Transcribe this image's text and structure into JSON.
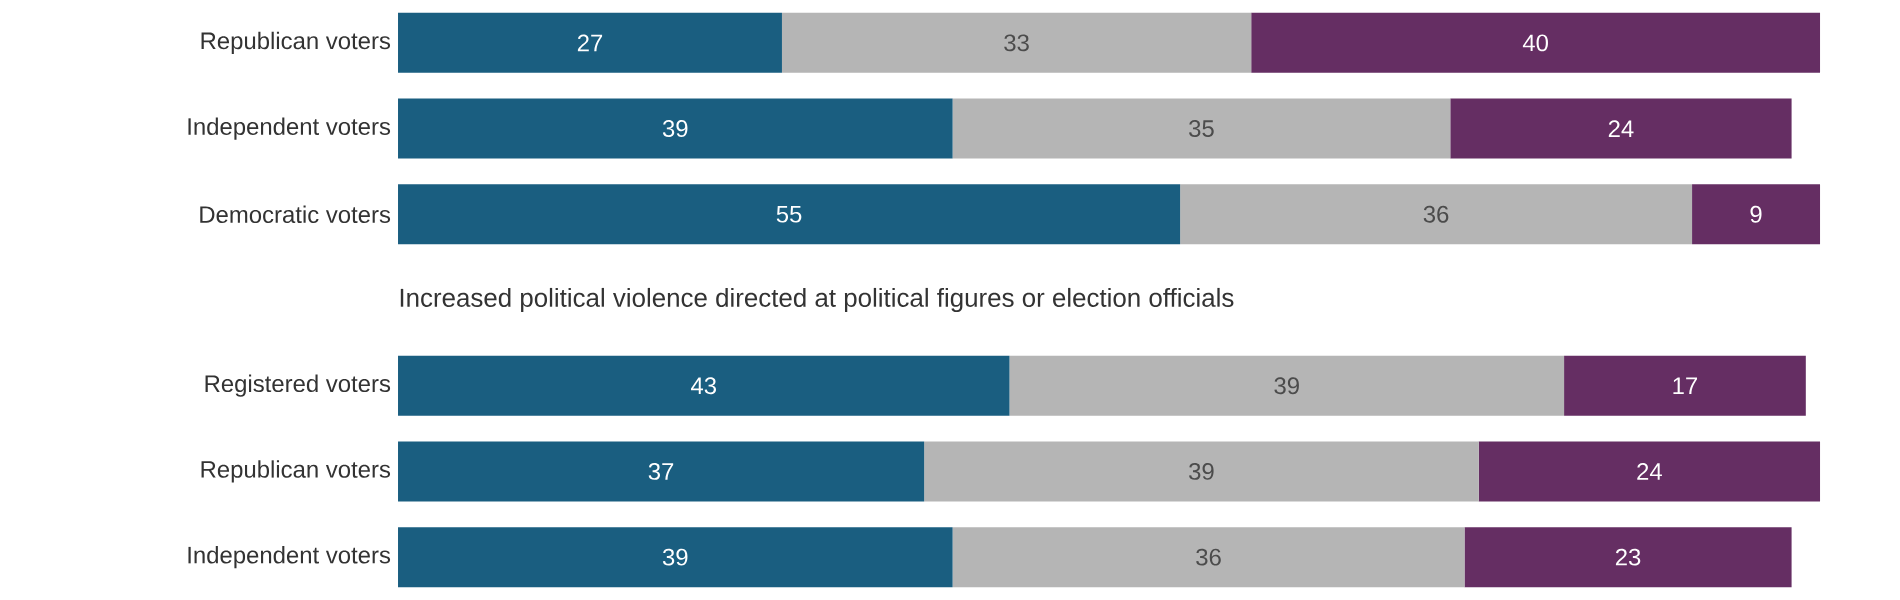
{
  "chart_data": {
    "type": "bar",
    "orientation": "horizontal",
    "stacked": true,
    "data_labels": true,
    "categories": [
      "Republican voters",
      "Independent voters",
      "Democratic voters",
      null,
      "Registered voters",
      "Republican voters",
      "Independent voters"
    ],
    "series": [
      {
        "color": "#1a5e80",
        "values": [
          27,
          39,
          55,
          null,
          43,
          37,
          39
        ]
      },
      {
        "color": "#b5b5b5",
        "values": [
          33,
          35,
          36,
          null,
          39,
          39,
          36
        ]
      },
      {
        "color": "#652e63",
        "values": [
          40,
          24,
          9,
          null,
          17,
          24,
          23
        ]
      }
    ],
    "tick_labels": "y",
    "annotations": [
      {
        "text": "Increased political violence directed at political figures or election officials"
      }
    ]
  }
}
